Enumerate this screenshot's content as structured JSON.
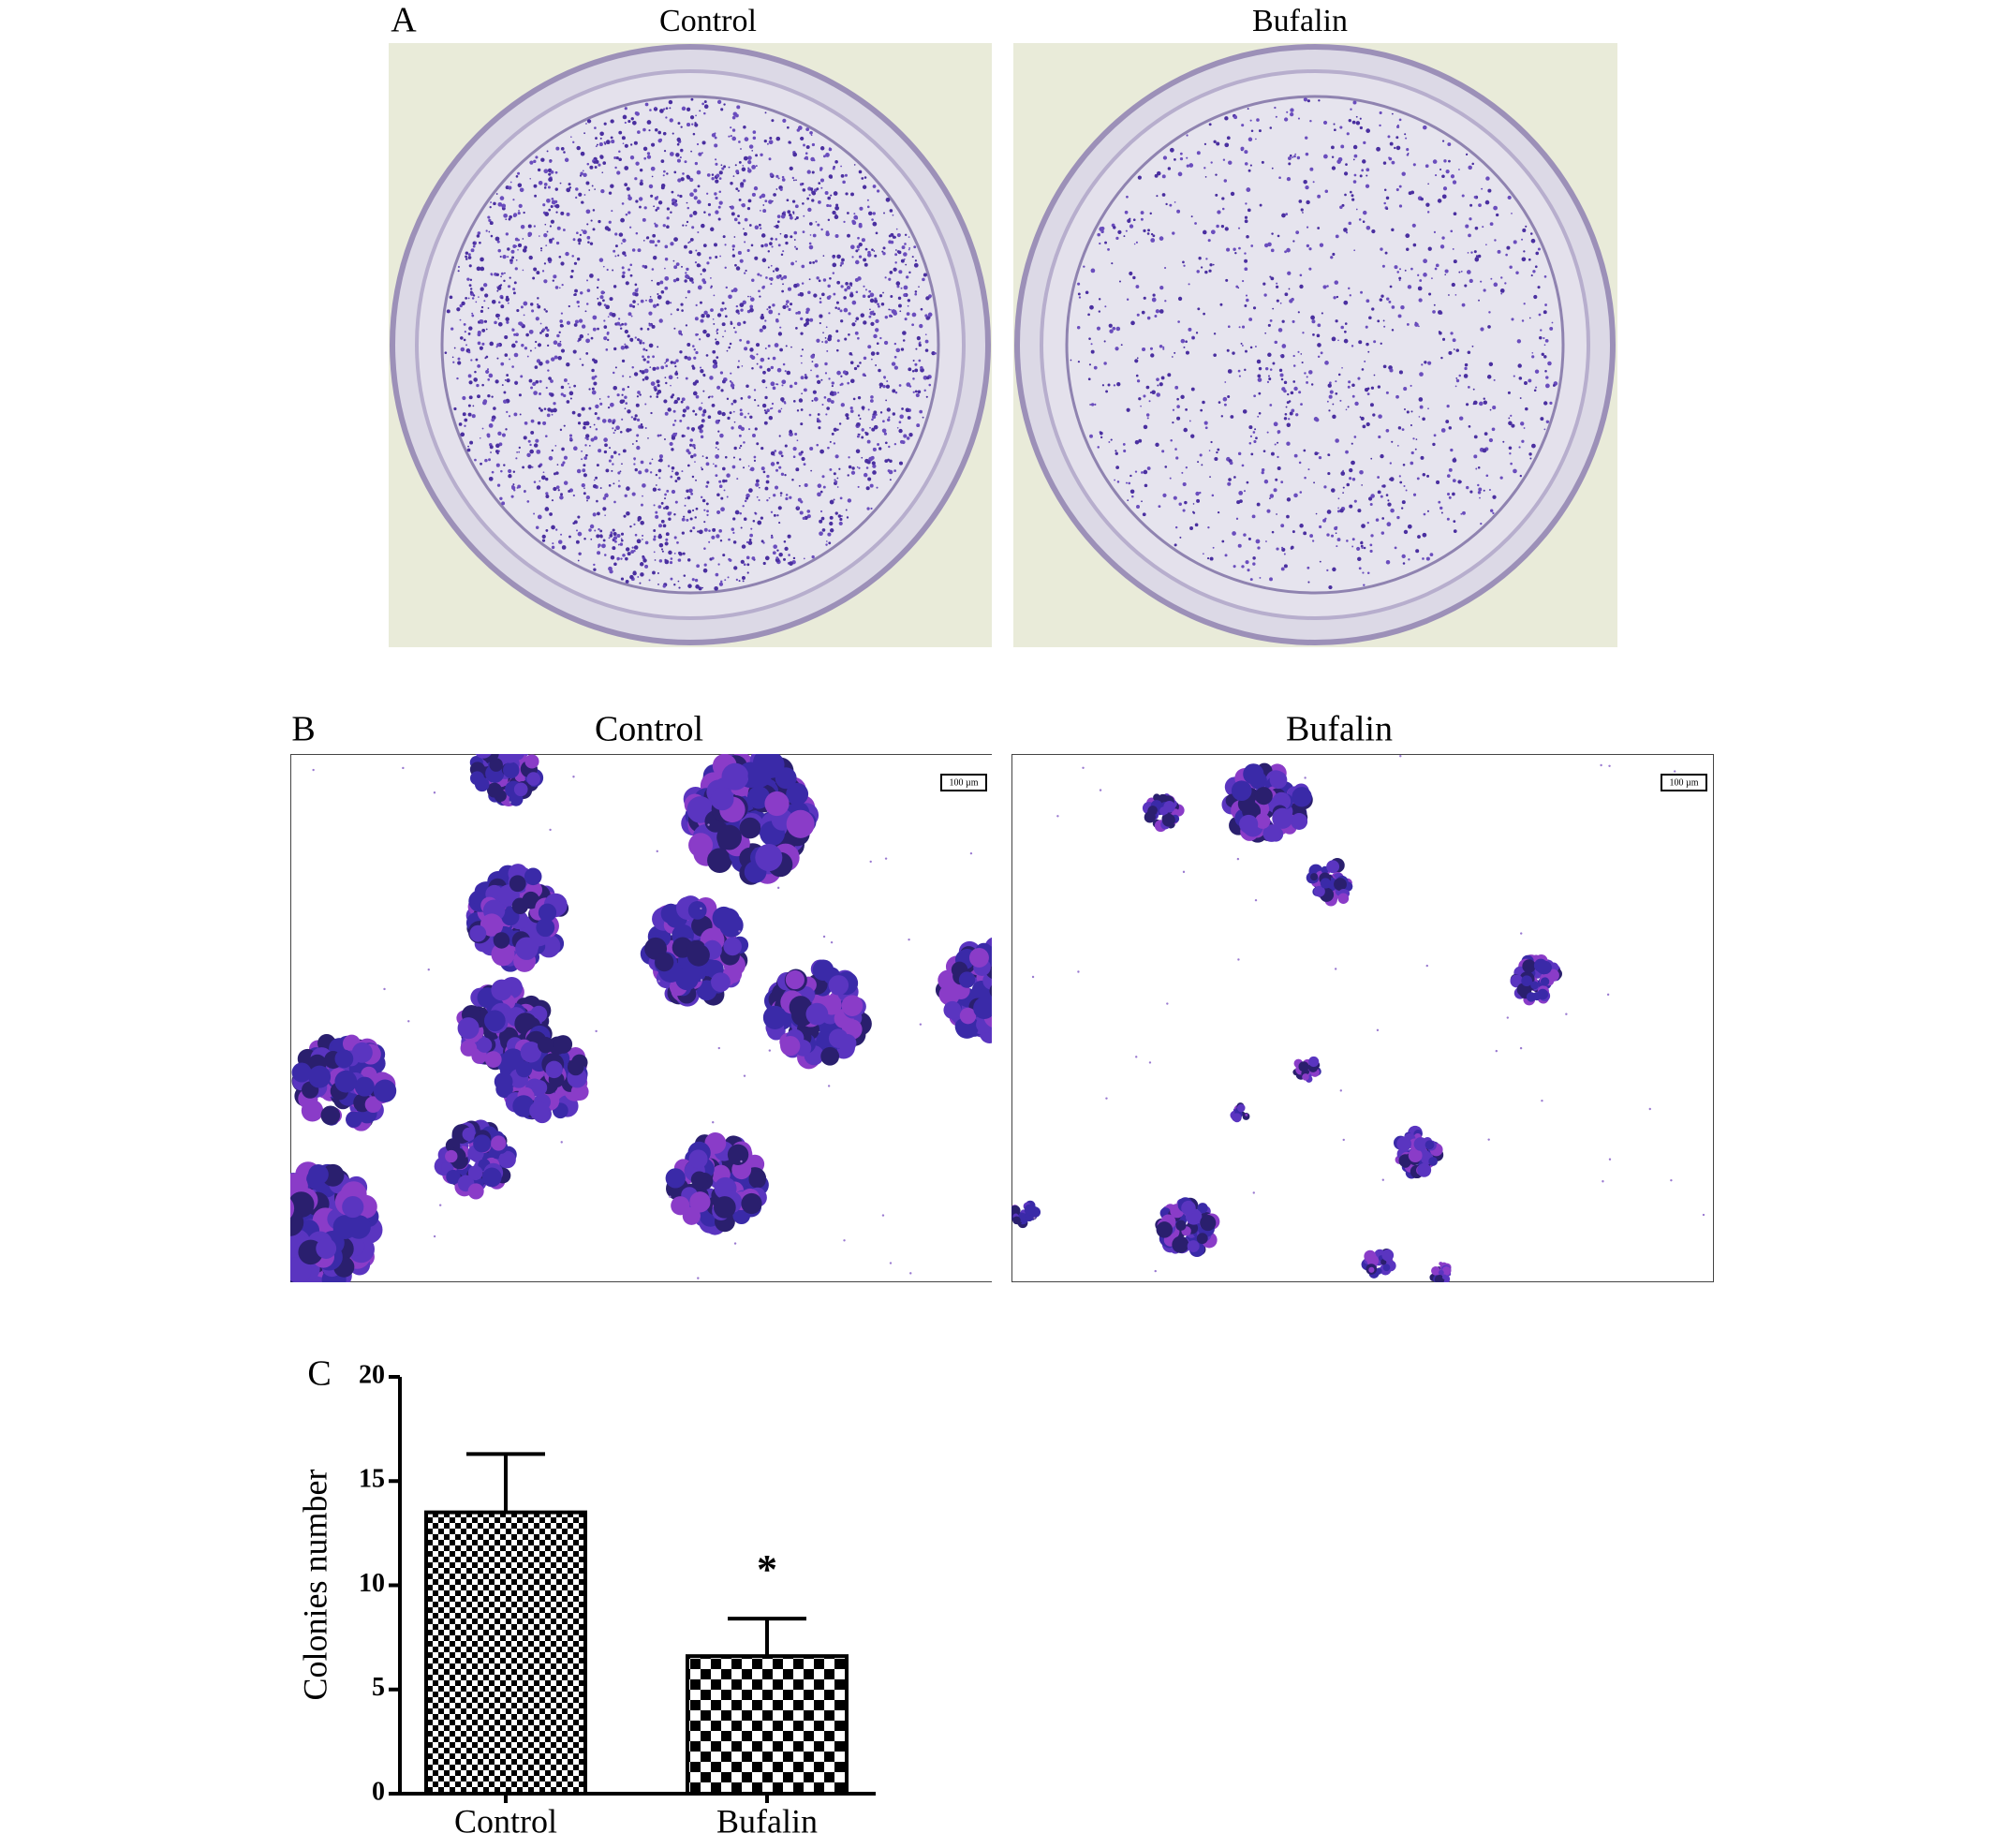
{
  "panels": [
    {
      "label": "A",
      "titles": [
        "Control",
        "Bufalin"
      ]
    },
    {
      "label": "B",
      "titles": [
        "Control",
        "Bufalin"
      ],
      "scale_bars": [
        "100 µm",
        "100 µm"
      ]
    }
  ],
  "chart_data": {
    "type": "bar",
    "label": "C",
    "ylabel": "Colonies number",
    "categories": [
      "Control",
      "Bufalin"
    ],
    "values": [
      13.5,
      6.6
    ],
    "errors": [
      2.8,
      1.8
    ],
    "annotations": [
      null,
      "*"
    ],
    "ylim": [
      0,
      20
    ],
    "yticks": [
      0,
      5,
      10,
      15,
      20
    ],
    "color": "#000000"
  }
}
